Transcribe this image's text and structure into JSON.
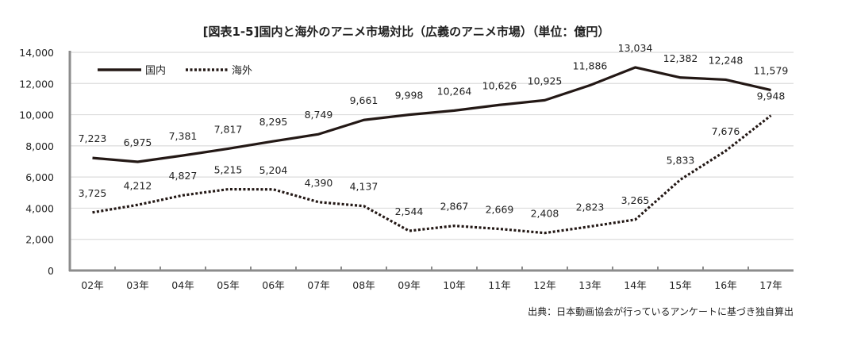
{
  "chart_data": {
    "type": "line",
    "title": "[図表1-5]国内と海外のアニメ市場対比（広義のアニメ市場）（単位：億円）",
    "source": "出典：日本動画協会が行っているアンケートに基づき独自算出",
    "categories": [
      "02年",
      "03年",
      "04年",
      "05年",
      "06年",
      "07年",
      "08年",
      "09年",
      "10年",
      "11年",
      "12年",
      "13年",
      "14年",
      "15年",
      "16年",
      "17年"
    ],
    "ylim": [
      0,
      14000
    ],
    "yticks": [
      0,
      2000,
      4000,
      6000,
      8000,
      10000,
      12000,
      14000
    ],
    "ytick_labels": [
      "0",
      "2,000",
      "4,000",
      "6,000",
      "8,000",
      "10,000",
      "12,000",
      "14,000"
    ],
    "grid": true,
    "legend_position": "top-left",
    "series": [
      {
        "name": "国内",
        "style": "solid",
        "color": "#231815",
        "values": [
          7223,
          6975,
          7381,
          7817,
          8295,
          8749,
          9661,
          9998,
          10264,
          10626,
          10925,
          11886,
          13034,
          12382,
          12248,
          11579
        ]
      },
      {
        "name": "海外",
        "style": "dotted",
        "color": "#231815",
        "values": [
          3725,
          4212,
          4827,
          5215,
          5204,
          4390,
          4137,
          2544,
          2867,
          2669,
          2408,
          2823,
          3265,
          5833,
          7676,
          9948
        ]
      }
    ]
  }
}
